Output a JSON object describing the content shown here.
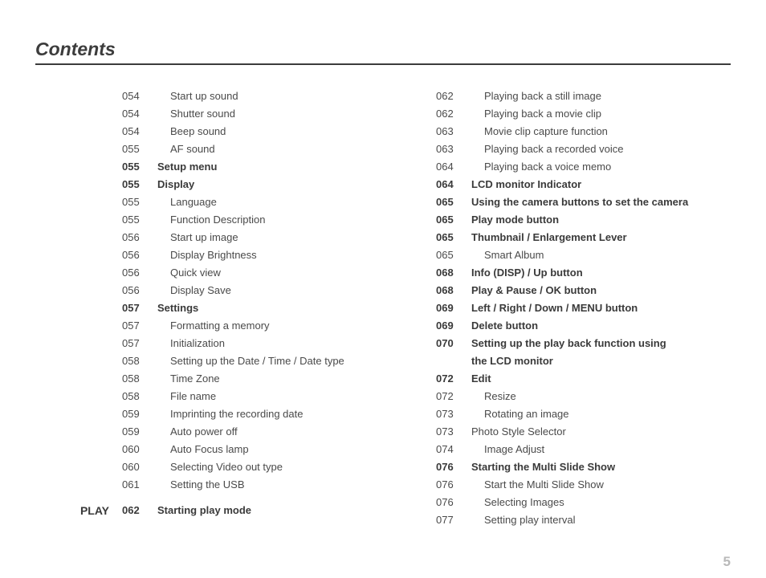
{
  "title": "Contents",
  "page_number": "5",
  "section_label": "PLAY",
  "left_column": [
    {
      "page": "054",
      "text": "Start up sound",
      "bold": false,
      "indent": 1
    },
    {
      "page": "054",
      "text": "Shutter sound",
      "bold": false,
      "indent": 1
    },
    {
      "page": "054",
      "text": "Beep sound",
      "bold": false,
      "indent": 1
    },
    {
      "page": "055",
      "text": "AF sound",
      "bold": false,
      "indent": 1
    },
    {
      "page": "055",
      "text": "Setup menu",
      "bold": true,
      "indent": 0
    },
    {
      "page": "055",
      "text": "Display",
      "bold": true,
      "indent": 0
    },
    {
      "page": "055",
      "text": "Language",
      "bold": false,
      "indent": 1
    },
    {
      "page": "055",
      "text": "Function Description",
      "bold": false,
      "indent": 1
    },
    {
      "page": "056",
      "text": "Start up image",
      "bold": false,
      "indent": 1
    },
    {
      "page": "056",
      "text": "Display Brightness",
      "bold": false,
      "indent": 1
    },
    {
      "page": "056",
      "text": "Quick view",
      "bold": false,
      "indent": 1
    },
    {
      "page": "056",
      "text": "Display Save",
      "bold": false,
      "indent": 1
    },
    {
      "page": "057",
      "text": "Settings",
      "bold": true,
      "indent": 0
    },
    {
      "page": "057",
      "text": "Formatting a memory",
      "bold": false,
      "indent": 1
    },
    {
      "page": "057",
      "text": "Initialization",
      "bold": false,
      "indent": 1
    },
    {
      "page": "058",
      "text": "Setting up the Date / Time / Date type",
      "bold": false,
      "indent": 1
    },
    {
      "page": "058",
      "text": "Time Zone",
      "bold": false,
      "indent": 1
    },
    {
      "page": "058",
      "text": "File name",
      "bold": false,
      "indent": 1
    },
    {
      "page": "059",
      "text": "Imprinting the recording date",
      "bold": false,
      "indent": 1
    },
    {
      "page": "059",
      "text": "Auto power off",
      "bold": false,
      "indent": 1
    },
    {
      "page": "060",
      "text": "Auto Focus lamp",
      "bold": false,
      "indent": 1
    },
    {
      "page": "060",
      "text": "Selecting Video out type",
      "bold": false,
      "indent": 1
    },
    {
      "page": "061",
      "text": "Setting the USB",
      "bold": false,
      "indent": 1
    },
    {
      "page": "",
      "text": "",
      "bold": false,
      "indent": 1,
      "spacer": true
    },
    {
      "page": "062",
      "text": "Starting play mode",
      "bold": true,
      "indent": 0,
      "section": true
    }
  ],
  "right_column": [
    {
      "page": "062",
      "text": "Playing back a still image",
      "bold": false,
      "indent": 1
    },
    {
      "page": "062",
      "text": "Playing back a movie clip",
      "bold": false,
      "indent": 1
    },
    {
      "page": "063",
      "text": "Movie clip capture function",
      "bold": false,
      "indent": 1
    },
    {
      "page": "063",
      "text": "Playing back a recorded voice",
      "bold": false,
      "indent": 1
    },
    {
      "page": "064",
      "text": "Playing back a voice memo",
      "bold": false,
      "indent": 1
    },
    {
      "page": "064",
      "text": "LCD monitor Indicator",
      "bold": true,
      "indent": 0
    },
    {
      "page": "065",
      "text": "Using the camera buttons to set the camera",
      "bold": true,
      "indent": 0
    },
    {
      "page": "065",
      "text": "Play mode button",
      "bold": true,
      "indent": 0
    },
    {
      "page": "065",
      "text": "Thumbnail / Enlargement Lever",
      "bold": true,
      "indent": 0
    },
    {
      "page": "065",
      "text": "Smart Album",
      "bold": false,
      "indent": 1
    },
    {
      "page": "068",
      "text": "Info (DISP) / Up button",
      "bold": true,
      "indent": 0
    },
    {
      "page": "068",
      "text": "Play & Pause / OK button",
      "bold": true,
      "indent": 0
    },
    {
      "page": "069",
      "text": "Left / Right / Down / MENU button",
      "bold": true,
      "indent": 0
    },
    {
      "page": "069",
      "text": "Delete button",
      "bold": true,
      "indent": 0
    },
    {
      "page": "070",
      "text": "Setting up the play back function using",
      "bold": true,
      "indent": 0
    },
    {
      "page": "",
      "text": "the LCD monitor",
      "bold": true,
      "indent": 0
    },
    {
      "page": "072",
      "text": "Edit",
      "bold": true,
      "indent": 0
    },
    {
      "page": "072",
      "text": "Resize",
      "bold": false,
      "indent": 1
    },
    {
      "page": "073",
      "text": "Rotating an image",
      "bold": false,
      "indent": 1
    },
    {
      "page": "073",
      "text": "Photo Style Selector",
      "bold": false,
      "indent": 0
    },
    {
      "page": "074",
      "text": "Image Adjust",
      "bold": false,
      "indent": 1
    },
    {
      "page": "076",
      "text": "Starting the Multi Slide Show",
      "bold": true,
      "indent": 0
    },
    {
      "page": "076",
      "text": "Start the Multi Slide Show",
      "bold": false,
      "indent": 1
    },
    {
      "page": "076",
      "text": "Selecting Images",
      "bold": false,
      "indent": 1
    },
    {
      "page": "077",
      "text": "Setting play interval",
      "bold": false,
      "indent": 1
    }
  ]
}
